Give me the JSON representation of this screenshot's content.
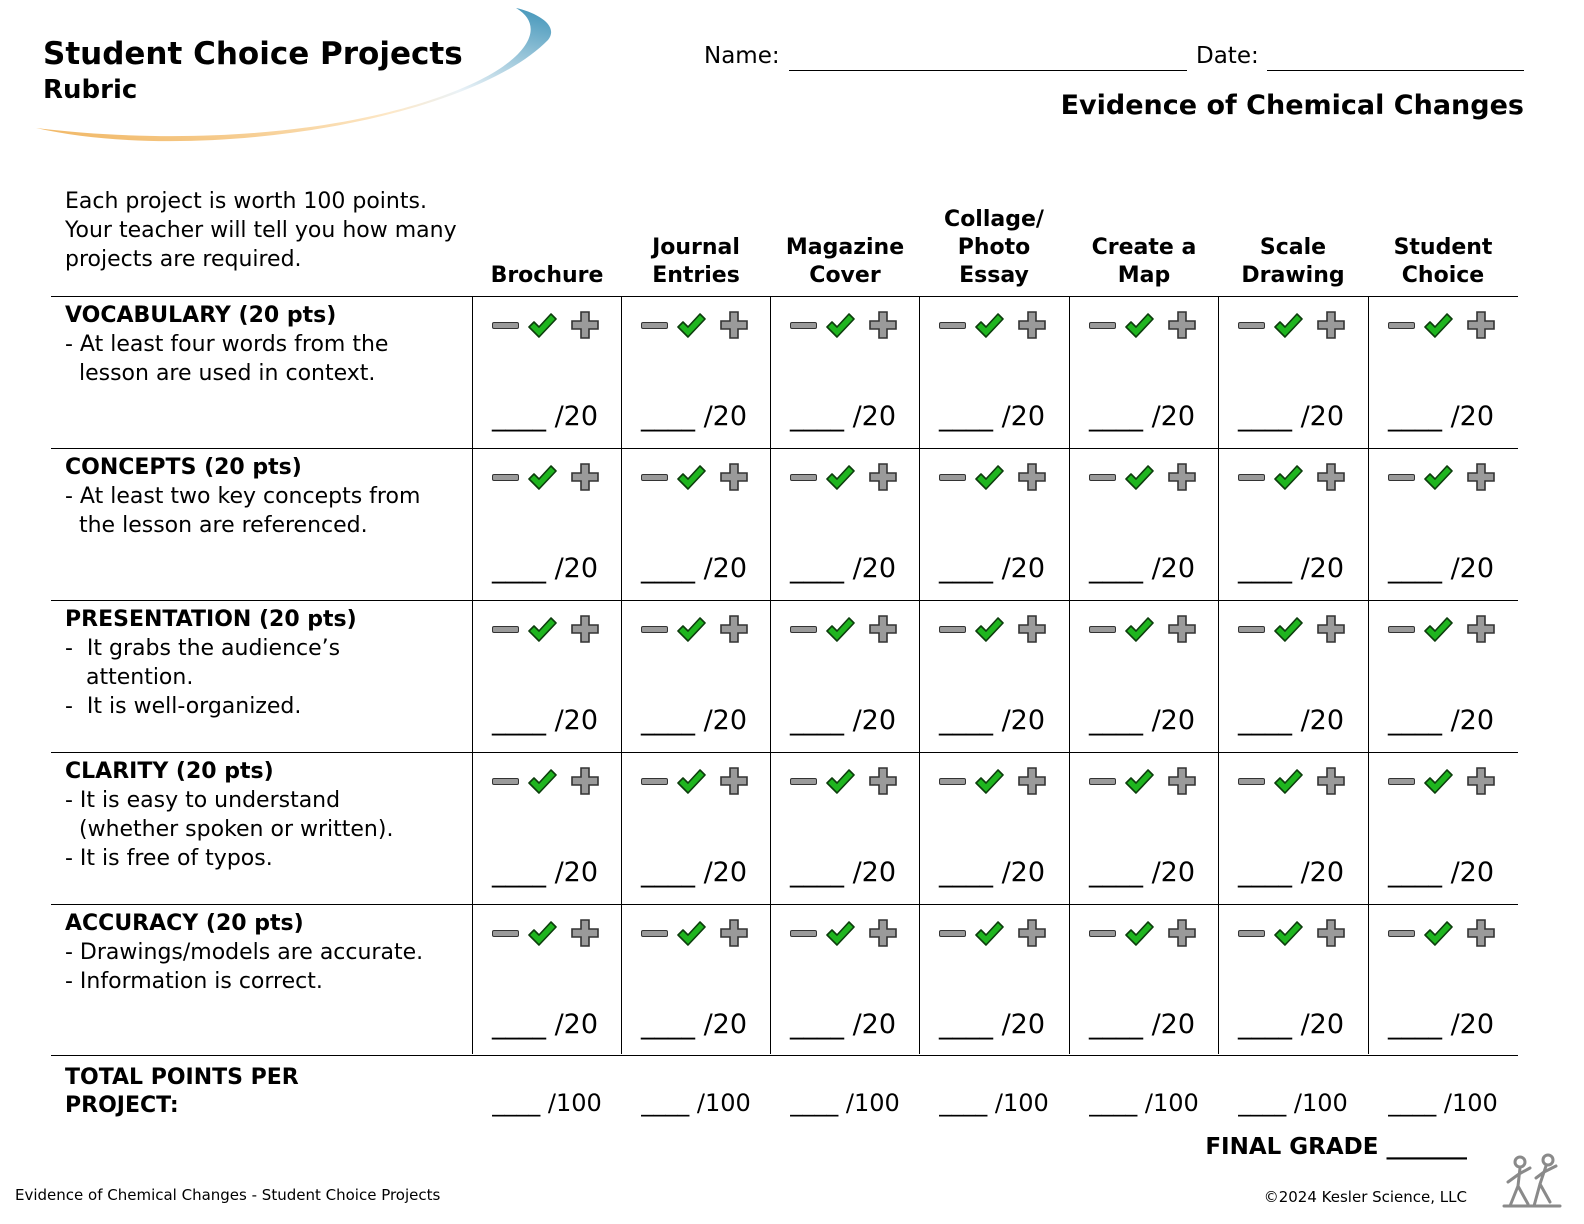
{
  "header": {
    "title": "Student Choice Projects",
    "subtitle": "Rubric",
    "name_label": "Name:",
    "date_label": "Date:",
    "topic": "Evidence of Chemical Changes"
  },
  "intro": "Each project is worth 100 points. Your teacher will tell you how many projects are required.",
  "columns": [
    {
      "lines": [
        "Brochure"
      ]
    },
    {
      "lines": [
        "Journal",
        "Entries"
      ]
    },
    {
      "lines": [
        "Magazine",
        "Cover"
      ]
    },
    {
      "lines": [
        "Collage/",
        "Photo",
        "Essay"
      ]
    },
    {
      "lines": [
        "Create a",
        "Map"
      ]
    },
    {
      "lines": [
        "Scale",
        "Drawing"
      ]
    },
    {
      "lines": [
        "Student",
        "Choice"
      ]
    }
  ],
  "criteria": [
    {
      "title": "VOCABULARY (20 pts)",
      "lines": [
        "- At least four words from the",
        "  lesson are used in context."
      ]
    },
    {
      "title": "CONCEPTS (20 pts)",
      "lines": [
        "- At least two key concepts from",
        "  the lesson are referenced."
      ]
    },
    {
      "title": "PRESENTATION (20 pts)",
      "lines": [
        "-  It grabs the audience’s",
        "   attention.",
        "-  It is well-organized."
      ]
    },
    {
      "title": "CLARITY (20 pts)",
      "lines": [
        "- It is easy to understand",
        "  (whether spoken or written).",
        "- It is free of typos."
      ]
    },
    {
      "title": "ACCURACY (20 pts)",
      "lines": [
        "- Drawings/models are accurate.",
        "- Information is correct."
      ]
    }
  ],
  "cell_score": "____ /20",
  "icons": {
    "minus": "minus-icon",
    "check": "checkmark-icon",
    "plus": "plus-icon",
    "check_color": "#1fb51f",
    "icon_gray": "#9a9a9a"
  },
  "total_label": "TOTAL POINTS PER PROJECT:",
  "total_score": "____ /100",
  "final_grade": "FINAL GRADE _______",
  "footer": {
    "left": "Evidence of Chemical Changes - Student Choice Projects",
    "right": "©2024  Kesler Science, LLC",
    "logo": "kesler-science-logo"
  }
}
